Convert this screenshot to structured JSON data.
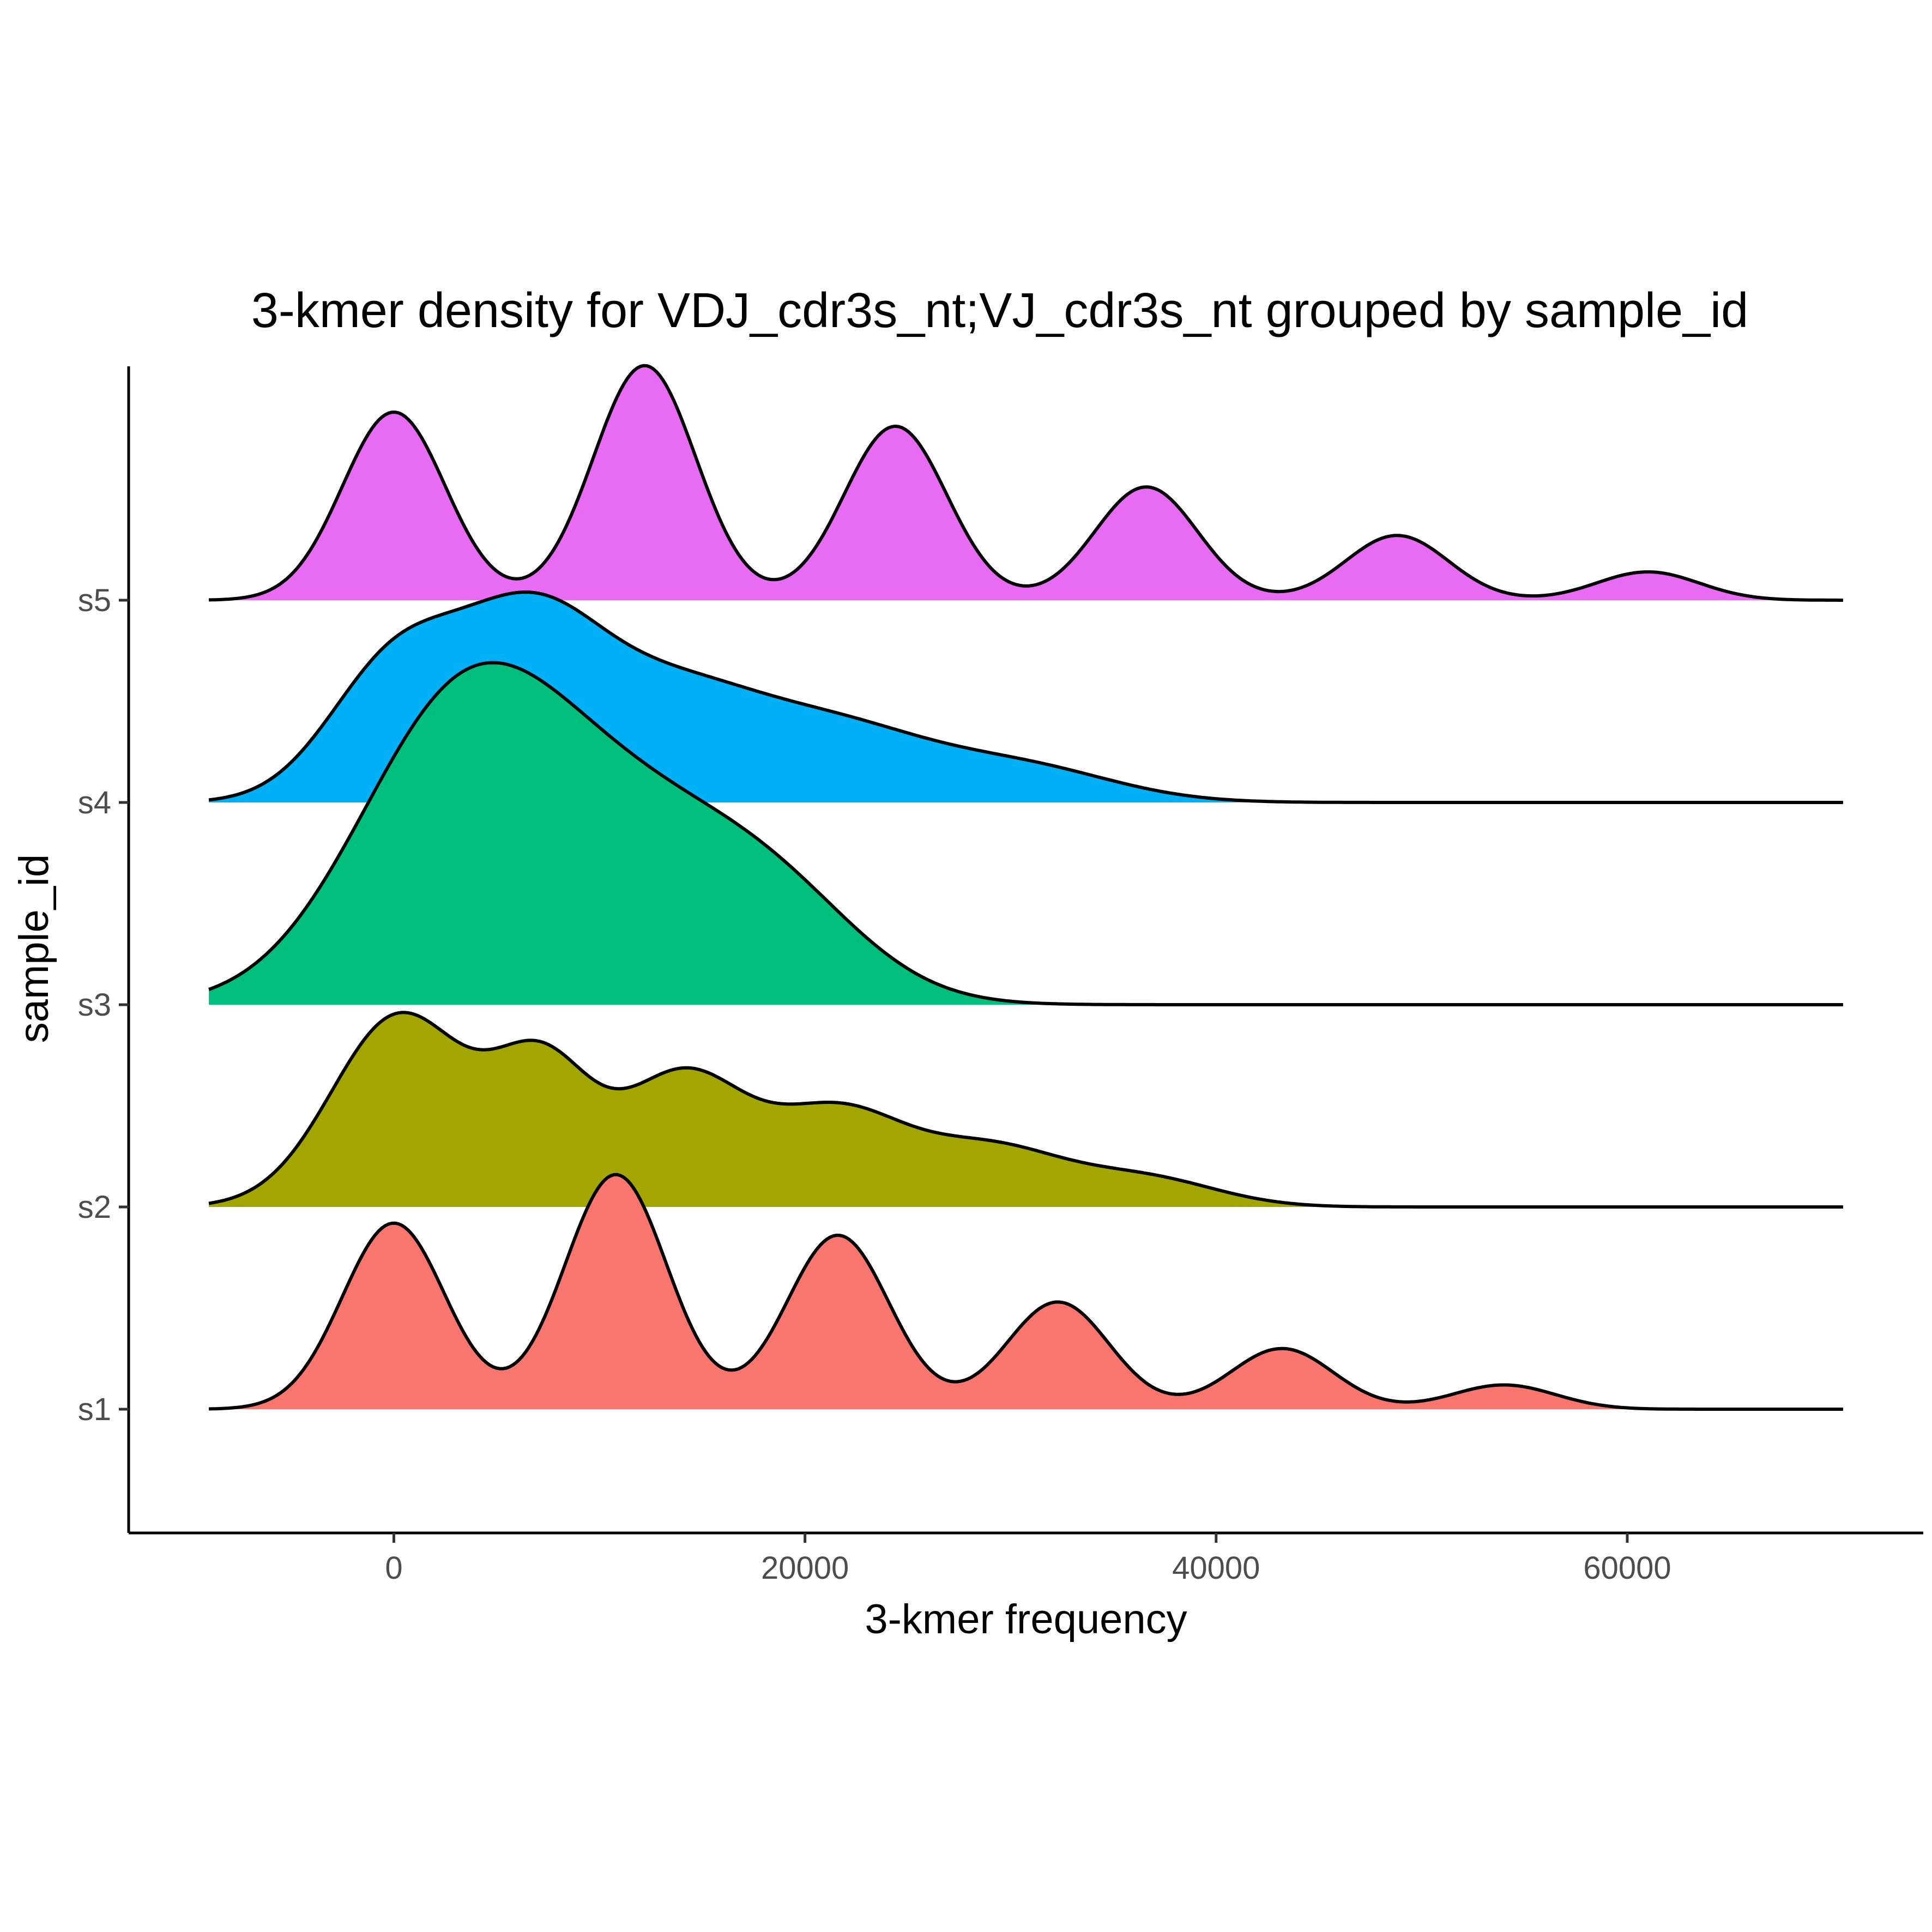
{
  "chart_data": {
    "type": "ridgeline",
    "title": "3-kmer density for VDJ_cdr3s_nt;VJ_cdr3s_nt grouped by sample_id",
    "xlabel": "3-kmer frequency",
    "ylabel": "sample_id",
    "xlim": [
      -12900,
      74400
    ],
    "x_ticks": [
      0,
      20000,
      40000,
      60000
    ],
    "x_tick_labels": [
      "0",
      "20000",
      "40000",
      "60000"
    ],
    "categories": [
      "s1",
      "s2",
      "s3",
      "s4",
      "s5"
    ],
    "grid": false,
    "legend": "none",
    "density_range": [
      -9000,
      70500
    ],
    "series": [
      {
        "name": "s1",
        "color": "#F8766D",
        "components": [
          {
            "mu": 0,
            "sigma": 2500,
            "w": 0.92
          },
          {
            "mu": 10800,
            "sigma": 2500,
            "w": 1.16
          },
          {
            "mu": 21600,
            "sigma": 2500,
            "w": 0.86
          },
          {
            "mu": 32300,
            "sigma": 2500,
            "w": 0.53
          },
          {
            "mu": 43200,
            "sigma": 2500,
            "w": 0.3
          },
          {
            "mu": 54000,
            "sigma": 2500,
            "w": 0.12
          }
        ]
      },
      {
        "name": "s2",
        "color": "#A3A500",
        "components": [
          {
            "mu": 300,
            "sigma": 3300,
            "w": 0.95
          },
          {
            "mu": 7200,
            "sigma": 2400,
            "w": 0.66
          },
          {
            "mu": 14000,
            "sigma": 3000,
            "w": 0.64
          },
          {
            "mu": 21500,
            "sigma": 3300,
            "w": 0.46
          },
          {
            "mu": 29000,
            "sigma": 3500,
            "w": 0.28
          },
          {
            "mu": 36500,
            "sigma": 3500,
            "w": 0.14
          }
        ]
      },
      {
        "name": "s3",
        "color": "#00BF7D",
        "components": [
          {
            "mu": 3000,
            "sigma": 5000,
            "w": 1.3
          },
          {
            "mu": 11500,
            "sigma": 6000,
            "w": 0.88
          },
          {
            "mu": 19000,
            "sigma": 4200,
            "w": 0.3
          }
        ]
      },
      {
        "name": "s4",
        "color": "#00B0F6",
        "components": [
          {
            "mu": 0,
            "sigma": 3200,
            "w": 0.66
          },
          {
            "mu": 6500,
            "sigma": 3500,
            "w": 0.83
          },
          {
            "mu": 13500,
            "sigma": 4200,
            "w": 0.5
          },
          {
            "mu": 21500,
            "sigma": 4500,
            "w": 0.34
          },
          {
            "mu": 30500,
            "sigma": 4500,
            "w": 0.17
          }
        ]
      },
      {
        "name": "s5",
        "color": "#E76BF3",
        "components": [
          {
            "mu": 0,
            "sigma": 2500,
            "w": 0.93
          },
          {
            "mu": 12200,
            "sigma": 2500,
            "w": 1.16
          },
          {
            "mu": 24400,
            "sigma": 2500,
            "w": 0.86
          },
          {
            "mu": 36600,
            "sigma": 2500,
            "w": 0.56
          },
          {
            "mu": 48800,
            "sigma": 2500,
            "w": 0.32
          },
          {
            "mu": 61000,
            "sigma": 2500,
            "w": 0.14
          }
        ]
      }
    ]
  }
}
